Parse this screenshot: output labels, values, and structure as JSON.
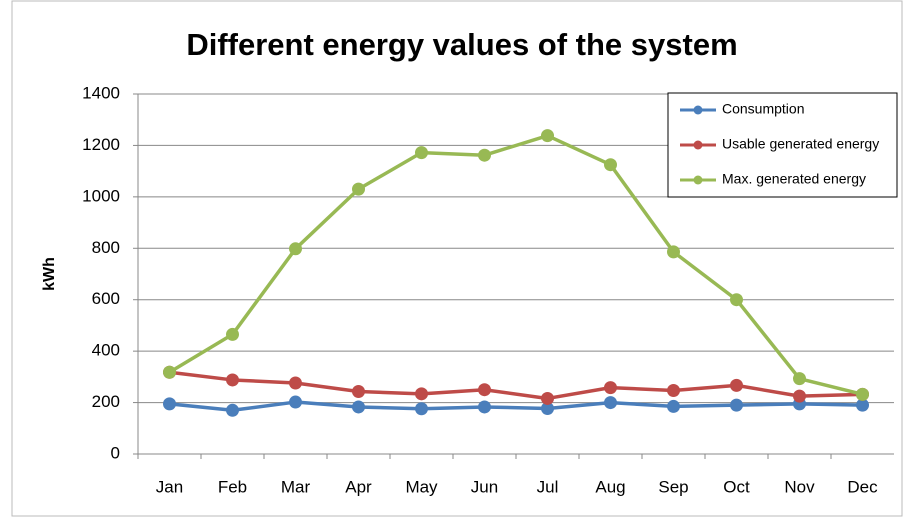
{
  "chart_data": {
    "type": "line",
    "title": "Different energy values of the system",
    "y_label": "kWh",
    "categories": [
      "Jan",
      "Feb",
      "Mar",
      "Apr",
      "May",
      "Jun",
      "Jul",
      "Aug",
      "Sep",
      "Oct",
      "Nov",
      "Dec"
    ],
    "series": [
      {
        "name": "Consumption",
        "color": "#4a7ebb",
        "values": [
          195,
          170,
          202,
          183,
          176,
          183,
          177,
          200,
          185,
          190,
          195,
          190
        ]
      },
      {
        "name": "Usable generated energy",
        "color": "#be4b48",
        "values": [
          318,
          288,
          276,
          243,
          234,
          250,
          216,
          258,
          247,
          267,
          225,
          232
        ]
      },
      {
        "name": "Max. generated energy",
        "color": "#98b954",
        "values": [
          318,
          465,
          798,
          1030,
          1172,
          1162,
          1238,
          1125,
          786,
          600,
          293,
          232
        ]
      }
    ],
    "ylim": [
      0,
      1400
    ],
    "yticks": [
      0,
      200,
      400,
      600,
      800,
      1000,
      1200,
      1400
    ],
    "grid": true,
    "legend": "top-right"
  }
}
